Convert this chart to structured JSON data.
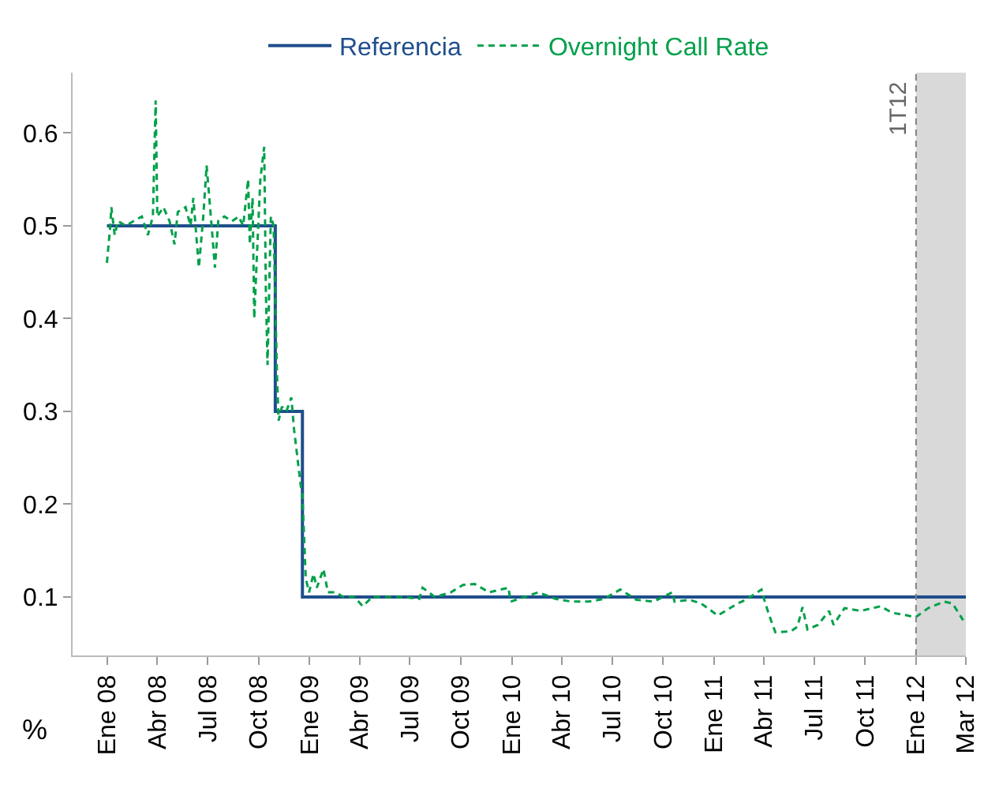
{
  "chart_data": {
    "type": "line",
    "ylabel": "%",
    "x": [
      "2008-01-01",
      "2008-10-31",
      "2008-12-19",
      "2012-03-31"
    ],
    "series": [
      {
        "name": "Referencia",
        "type": "step",
        "color": "#1f4e8c",
        "line_style": "solid",
        "values": [
          0.5,
          0.3,
          0.1,
          0.1
        ]
      },
      {
        "name": "Overnight Call Rate",
        "type": "line",
        "color": "#00a04a",
        "line_style": "dashed",
        "x": [
          "2008-01-01",
          "2008-01-07",
          "2008-01-09",
          "2008-01-15",
          "2008-01-21",
          "2008-02-04",
          "2008-02-18",
          "2008-03-04",
          "2008-03-15",
          "2008-03-24",
          "2008-03-29",
          "2008-04-01",
          "2008-04-12",
          "2008-04-23",
          "2008-05-02",
          "2008-05-08",
          "2008-05-22",
          "2008-05-31",
          "2008-06-05",
          "2008-06-15",
          "2008-06-23",
          "2008-06-29",
          "2008-07-08",
          "2008-07-14",
          "2008-07-20",
          "2008-07-31",
          "2008-08-14",
          "2008-08-26",
          "2008-09-03",
          "2008-09-12",
          "2008-09-15",
          "2008-09-20",
          "2008-09-23",
          "2008-09-28",
          "2008-10-04",
          "2008-10-11",
          "2008-10-14",
          "2008-10-17",
          "2008-10-23",
          "2008-10-28",
          "2008-11-03",
          "2008-11-06",
          "2008-11-12",
          "2008-11-20",
          "2008-11-29",
          "2008-12-04",
          "2008-12-10",
          "2008-12-16",
          "2008-12-19",
          "2008-12-25",
          "2008-12-31",
          "2009-01-08",
          "2009-01-14",
          "2009-01-26",
          "2009-02-03",
          "2009-02-17",
          "2009-03-03",
          "2009-03-23",
          "2009-04-07",
          "2009-04-24",
          "2009-05-22",
          "2009-06-20",
          "2009-07-18",
          "2009-07-24",
          "2009-08-15",
          "2009-09-13",
          "2009-10-05",
          "2009-10-26",
          "2009-11-21",
          "2009-12-26",
          "2009-12-30",
          "2010-02-18",
          "2010-03-21",
          "2010-04-19",
          "2010-05-20",
          "2010-06-17",
          "2010-07-16",
          "2010-08-14",
          "2010-09-14",
          "2010-10-18",
          "2010-10-22",
          "2010-11-18",
          "2010-12-09",
          "2011-01-08",
          "2011-02-13",
          "2011-02-28",
          "2011-03-28",
          "2011-04-03",
          "2011-04-11",
          "2011-04-22",
          "2011-05-20",
          "2011-06-01",
          "2011-06-10",
          "2011-06-19",
          "2011-07-08",
          "2011-07-28",
          "2011-08-05",
          "2011-08-25",
          "2011-09-23",
          "2011-10-29",
          "2011-11-19",
          "2011-12-17",
          "2011-12-31",
          "2012-01-23",
          "2012-02-21",
          "2012-03-07",
          "2012-03-26"
        ],
        "values": [
          0.46,
          0.5,
          0.52,
          0.49,
          0.505,
          0.5,
          0.505,
          0.51,
          0.49,
          0.51,
          0.635,
          0.51,
          0.52,
          0.505,
          0.48,
          0.515,
          0.52,
          0.5,
          0.53,
          0.455,
          0.51,
          0.565,
          0.5,
          0.455,
          0.505,
          0.51,
          0.505,
          0.51,
          0.5,
          0.55,
          0.48,
          0.53,
          0.4,
          0.47,
          0.55,
          0.585,
          0.43,
          0.35,
          0.51,
          0.5,
          0.34,
          0.29,
          0.305,
          0.3,
          0.315,
          0.28,
          0.25,
          0.22,
          0.21,
          0.12,
          0.105,
          0.125,
          0.11,
          0.13,
          0.105,
          0.105,
          0.1,
          0.1,
          0.09,
          0.1,
          0.1,
          0.1,
          0.098,
          0.11,
          0.1,
          0.105,
          0.113,
          0.114,
          0.105,
          0.11,
          0.095,
          0.105,
          0.098,
          0.095,
          0.095,
          0.098,
          0.108,
          0.097,
          0.095,
          0.105,
          0.095,
          0.097,
          0.093,
          0.08,
          0.093,
          0.097,
          0.108,
          0.095,
          0.08,
          0.062,
          0.063,
          0.068,
          0.089,
          0.065,
          0.07,
          0.085,
          0.07,
          0.088,
          0.085,
          0.09,
          0.083,
          0.08,
          0.078,
          0.088,
          0.095,
          0.093,
          0.075
        ]
      }
    ],
    "xlim": [
      "2007-10-31",
      "2012-03-31"
    ],
    "xticks": [
      {
        "value": "2008-01-01",
        "label": "Ene 08"
      },
      {
        "value": "2008-04-01",
        "label": "Abr 08"
      },
      {
        "value": "2008-07-01",
        "label": "Jul 08"
      },
      {
        "value": "2008-10-01",
        "label": "Oct 08"
      },
      {
        "value": "2009-01-01",
        "label": "Ene 09"
      },
      {
        "value": "2009-04-01",
        "label": "Abr 09"
      },
      {
        "value": "2009-07-01",
        "label": "Jul 09"
      },
      {
        "value": "2009-10-01",
        "label": "Oct 09"
      },
      {
        "value": "2010-01-01",
        "label": "Ene 10"
      },
      {
        "value": "2010-04-01",
        "label": "Abr 10"
      },
      {
        "value": "2010-07-01",
        "label": "Jul 10"
      },
      {
        "value": "2010-10-01",
        "label": "Oct 10"
      },
      {
        "value": "2011-01-01",
        "label": "Ene 11"
      },
      {
        "value": "2011-04-01",
        "label": "Abr 11"
      },
      {
        "value": "2011-07-01",
        "label": "Jul 11"
      },
      {
        "value": "2011-10-01",
        "label": "Oct 11"
      },
      {
        "value": "2012-01-01",
        "label": "Ene 12"
      },
      {
        "value": "2012-03-31",
        "label": "Mar 12"
      }
    ],
    "ylim": [
      0.037,
      0.665
    ],
    "yticks": [
      0.1,
      0.2,
      0.3,
      0.4,
      0.5,
      0.6
    ],
    "grid": false,
    "legend": "top",
    "marker": "none",
    "ref_lines": [
      {
        "axis": "x",
        "value": "2012-01-01",
        "label": "1T12",
        "color": "#808080",
        "line_style": "dashed"
      }
    ],
    "bands": [
      {
        "axis": "x",
        "from": "2012-01-01",
        "to": "2012-03-31",
        "color": "#d9d9d9"
      }
    ]
  }
}
